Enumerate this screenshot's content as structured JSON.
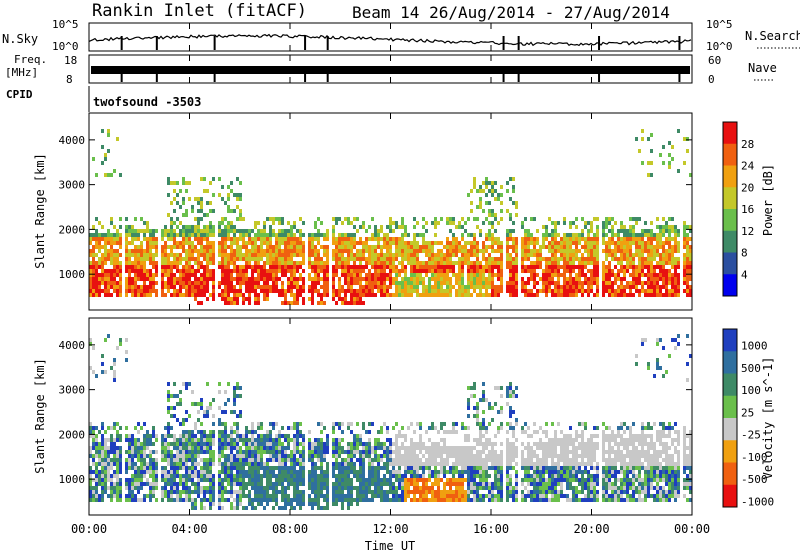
{
  "header": {
    "station": "Rankin Inlet (fitACF)",
    "beam_info": "Beam 14 26/Aug/2014 - 27/Aug/2014"
  },
  "top_panels": {
    "nsky_label": "N.Sky",
    "nsky_ticks": [
      "10^5",
      "10^0"
    ],
    "nsearch_label": "N.Search",
    "nsearch_ticks": [
      "10^5",
      "10^0"
    ],
    "freq_label_1": "Freq.",
    "freq_label_2": "[MHz]",
    "freq_ticks": [
      "18",
      "8"
    ],
    "nave_label": "Nave",
    "nave_ticks": [
      "60",
      "0"
    ],
    "cpid_label": "CPID",
    "cpid_value": "twofsound -3503"
  },
  "chart_data": [
    {
      "type": "heatmap",
      "name": "power",
      "ylabel": "Slant Range [km]",
      "xlabel": "Time UT",
      "y_ticks": [
        "1000",
        "2000",
        "3000",
        "4000"
      ],
      "ylim": [
        200,
        4600
      ],
      "xlim": [
        0,
        24
      ],
      "colorbar_label": "Power [dB]",
      "colorbar_ticks": [
        "28",
        "24",
        "20",
        "16",
        "12",
        "8",
        "4"
      ],
      "colors": [
        "#0000ee",
        "#2b4fa0",
        "#3e8a66",
        "#6abf4b",
        "#c4c829",
        "#f0a010",
        "#f06010",
        "#e81010"
      ]
    },
    {
      "type": "heatmap",
      "name": "velocity",
      "ylabel": "Slant Range [km]",
      "xlabel": "Time UT",
      "y_ticks": [
        "1000",
        "2000",
        "3000",
        "4000"
      ],
      "ylim": [
        200,
        4600
      ],
      "xlim": [
        0,
        24
      ],
      "colorbar_label": "Velocity [m s^-1]",
      "colorbar_ticks": [
        "1000",
        "500",
        "100",
        "25",
        "-25",
        "-100",
        "-500",
        "-1000"
      ],
      "colors": [
        "#1f3fbf",
        "#2f6f9f",
        "#3e8a66",
        "#6abf4b",
        "#c8c8c8",
        "#f0a010",
        "#f06010",
        "#e81010"
      ]
    }
  ],
  "time_axis": {
    "ticks": [
      "00:00",
      "04:00",
      "08:00",
      "12:00",
      "16:00",
      "20:00",
      "00:00"
    ],
    "label": "Time UT"
  }
}
